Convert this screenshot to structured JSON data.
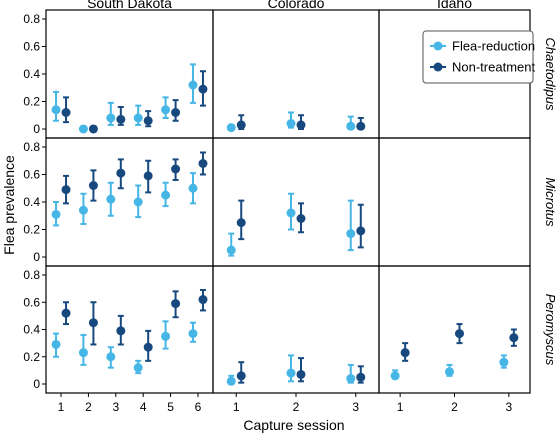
{
  "colors": {
    "Flea-reduction": "#45b6e6",
    "Non-treatment": "#17497f"
  },
  "chart_data": {
    "type": "scatter",
    "xlabel": "Capture session",
    "ylabel": "Flea prevalence",
    "columns": [
      "South Dakota",
      "Colorado",
      "Idaho"
    ],
    "rows": [
      "Chaetodipus",
      "Microtus",
      "Peromyscus"
    ],
    "ylims": [
      [
        0,
        0.8
      ],
      [
        0,
        0.8
      ],
      [
        0,
        0.8
      ]
    ],
    "yticks": [
      [
        0,
        0.2,
        0.4,
        0.6,
        0.8
      ],
      [
        0,
        0.2,
        0.4,
        0.6,
        0.8
      ],
      [
        0,
        0.2,
        0.4,
        0.6,
        0.8
      ]
    ],
    "yticklabels": [
      [
        "0",
        "0.2",
        "0.4",
        "0.6",
        "0.8"
      ],
      [
        "0",
        "0.2",
        "0.4",
        "0.6",
        "0.8"
      ],
      [
        "0",
        "0.2",
        "0.4",
        "0.6",
        "0.8"
      ]
    ],
    "xticks": [
      [
        "1",
        "2",
        "3",
        "4",
        "5",
        "6"
      ],
      [
        "1",
        "2",
        "3"
      ],
      [
        "1",
        "2",
        "3"
      ]
    ],
    "legend": {
      "entries": [
        "Flea-reduction",
        "Non-treatment"
      ],
      "placement": "top-right"
    },
    "panels": [
      {
        "row": "Chaetodipus",
        "column": "South Dakota",
        "series": [
          {
            "name": "Flea-reduction",
            "points": [
              {
                "x": 1,
                "y": 0.14,
                "lo": 0.06,
                "hi": 0.27
              },
              {
                "x": 2,
                "y": 0.0,
                "lo": 0.0,
                "hi": 0.02
              },
              {
                "x": 3,
                "y": 0.08,
                "lo": 0.03,
                "hi": 0.19
              },
              {
                "x": 4,
                "y": 0.08,
                "lo": 0.03,
                "hi": 0.17
              },
              {
                "x": 5,
                "y": 0.14,
                "lo": 0.08,
                "hi": 0.23
              },
              {
                "x": 6,
                "y": 0.32,
                "lo": 0.19,
                "hi": 0.47
              }
            ]
          },
          {
            "name": "Non-treatment",
            "points": [
              {
                "x": 1,
                "y": 0.12,
                "lo": 0.05,
                "hi": 0.23
              },
              {
                "x": 2,
                "y": 0.0,
                "lo": 0.0,
                "hi": 0.02
              },
              {
                "x": 3,
                "y": 0.07,
                "lo": 0.03,
                "hi": 0.16
              },
              {
                "x": 4,
                "y": 0.06,
                "lo": 0.02,
                "hi": 0.13
              },
              {
                "x": 5,
                "y": 0.12,
                "lo": 0.06,
                "hi": 0.21
              },
              {
                "x": 6,
                "y": 0.29,
                "lo": 0.17,
                "hi": 0.42
              }
            ]
          }
        ]
      },
      {
        "row": "Chaetodipus",
        "column": "Colorado",
        "series": [
          {
            "name": "Flea-reduction",
            "points": [
              {
                "x": 1,
                "y": 0.01,
                "lo": 0.0,
                "hi": 0.03
              },
              {
                "x": 2,
                "y": 0.04,
                "lo": 0.01,
                "hi": 0.12
              },
              {
                "x": 3,
                "y": 0.02,
                "lo": 0.0,
                "hi": 0.09
              }
            ]
          },
          {
            "name": "Non-treatment",
            "points": [
              {
                "x": 1,
                "y": 0.03,
                "lo": 0.0,
                "hi": 0.1
              },
              {
                "x": 2,
                "y": 0.03,
                "lo": 0.0,
                "hi": 0.1
              },
              {
                "x": 3,
                "y": 0.02,
                "lo": 0.0,
                "hi": 0.08
              }
            ]
          }
        ]
      },
      {
        "row": "Chaetodipus",
        "column": "Idaho",
        "series": []
      },
      {
        "row": "Microtus",
        "column": "South Dakota",
        "series": [
          {
            "name": "Flea-reduction",
            "points": [
              {
                "x": 1,
                "y": 0.31,
                "lo": 0.23,
                "hi": 0.4
              },
              {
                "x": 2,
                "y": 0.34,
                "lo": 0.24,
                "hi": 0.46
              },
              {
                "x": 3,
                "y": 0.42,
                "lo": 0.3,
                "hi": 0.54
              },
              {
                "x": 4,
                "y": 0.4,
                "lo": 0.29,
                "hi": 0.52
              },
              {
                "x": 5,
                "y": 0.45,
                "lo": 0.37,
                "hi": 0.54
              },
              {
                "x": 6,
                "y": 0.5,
                "lo": 0.39,
                "hi": 0.61
              }
            ]
          },
          {
            "name": "Non-treatment",
            "points": [
              {
                "x": 1,
                "y": 0.49,
                "lo": 0.39,
                "hi": 0.59
              },
              {
                "x": 2,
                "y": 0.52,
                "lo": 0.41,
                "hi": 0.63
              },
              {
                "x": 3,
                "y": 0.61,
                "lo": 0.5,
                "hi": 0.71
              },
              {
                "x": 4,
                "y": 0.59,
                "lo": 0.47,
                "hi": 0.7
              },
              {
                "x": 5,
                "y": 0.64,
                "lo": 0.56,
                "hi": 0.71
              },
              {
                "x": 6,
                "y": 0.68,
                "lo": 0.6,
                "hi": 0.76
              }
            ]
          }
        ]
      },
      {
        "row": "Microtus",
        "column": "Colorado",
        "series": [
          {
            "name": "Flea-reduction",
            "points": [
              {
                "x": 1,
                "y": 0.05,
                "lo": 0.01,
                "hi": 0.17
              },
              {
                "x": 2,
                "y": 0.32,
                "lo": 0.2,
                "hi": 0.46
              },
              {
                "x": 3,
                "y": 0.17,
                "lo": 0.05,
                "hi": 0.41
              }
            ]
          },
          {
            "name": "Non-treatment",
            "points": [
              {
                "x": 1,
                "y": 0.25,
                "lo": 0.13,
                "hi": 0.41
              },
              {
                "x": 2,
                "y": 0.28,
                "lo": 0.18,
                "hi": 0.39
              },
              {
                "x": 3,
                "y": 0.19,
                "lo": 0.07,
                "hi": 0.38
              }
            ]
          }
        ]
      },
      {
        "row": "Microtus",
        "column": "Idaho",
        "series": []
      },
      {
        "row": "Peromyscus",
        "column": "South Dakota",
        "series": [
          {
            "name": "Flea-reduction",
            "points": [
              {
                "x": 1,
                "y": 0.29,
                "lo": 0.2,
                "hi": 0.37
              },
              {
                "x": 2,
                "y": 0.23,
                "lo": 0.14,
                "hi": 0.36
              },
              {
                "x": 3,
                "y": 0.2,
                "lo": 0.12,
                "hi": 0.27
              },
              {
                "x": 4,
                "y": 0.12,
                "lo": 0.08,
                "hi": 0.17
              },
              {
                "x": 5,
                "y": 0.35,
                "lo": 0.26,
                "hi": 0.46
              },
              {
                "x": 6,
                "y": 0.37,
                "lo": 0.31,
                "hi": 0.45
              }
            ]
          },
          {
            "name": "Non-treatment",
            "points": [
              {
                "x": 1,
                "y": 0.52,
                "lo": 0.44,
                "hi": 0.6
              },
              {
                "x": 2,
                "y": 0.45,
                "lo": 0.29,
                "hi": 0.6
              },
              {
                "x": 3,
                "y": 0.39,
                "lo": 0.29,
                "hi": 0.5
              },
              {
                "x": 4,
                "y": 0.27,
                "lo": 0.17,
                "hi": 0.39
              },
              {
                "x": 5,
                "y": 0.59,
                "lo": 0.49,
                "hi": 0.68
              },
              {
                "x": 6,
                "y": 0.62,
                "lo": 0.54,
                "hi": 0.69
              }
            ]
          }
        ]
      },
      {
        "row": "Peromyscus",
        "column": "Colorado",
        "series": [
          {
            "name": "Flea-reduction",
            "points": [
              {
                "x": 1,
                "y": 0.02,
                "lo": 0.0,
                "hi": 0.06
              },
              {
                "x": 2,
                "y": 0.08,
                "lo": 0.02,
                "hi": 0.21
              },
              {
                "x": 3,
                "y": 0.04,
                "lo": 0.01,
                "hi": 0.14
              }
            ]
          },
          {
            "name": "Non-treatment",
            "points": [
              {
                "x": 1,
                "y": 0.06,
                "lo": 0.01,
                "hi": 0.16
              },
              {
                "x": 2,
                "y": 0.07,
                "lo": 0.02,
                "hi": 0.19
              },
              {
                "x": 3,
                "y": 0.05,
                "lo": 0.01,
                "hi": 0.13
              }
            ]
          }
        ]
      },
      {
        "row": "Peromyscus",
        "column": "Idaho",
        "series": [
          {
            "name": "Flea-reduction",
            "points": [
              {
                "x": 1,
                "y": 0.06,
                "lo": 0.04,
                "hi": 0.1
              },
              {
                "x": 2,
                "y": 0.09,
                "lo": 0.06,
                "hi": 0.14
              },
              {
                "x": 3,
                "y": 0.16,
                "lo": 0.12,
                "hi": 0.21
              }
            ]
          },
          {
            "name": "Non-treatment",
            "points": [
              {
                "x": 1,
                "y": 0.23,
                "lo": 0.17,
                "hi": 0.3
              },
              {
                "x": 2,
                "y": 0.37,
                "lo": 0.3,
                "hi": 0.44
              },
              {
                "x": 3,
                "y": 0.34,
                "lo": 0.28,
                "hi": 0.4
              }
            ]
          }
        ]
      }
    ]
  }
}
